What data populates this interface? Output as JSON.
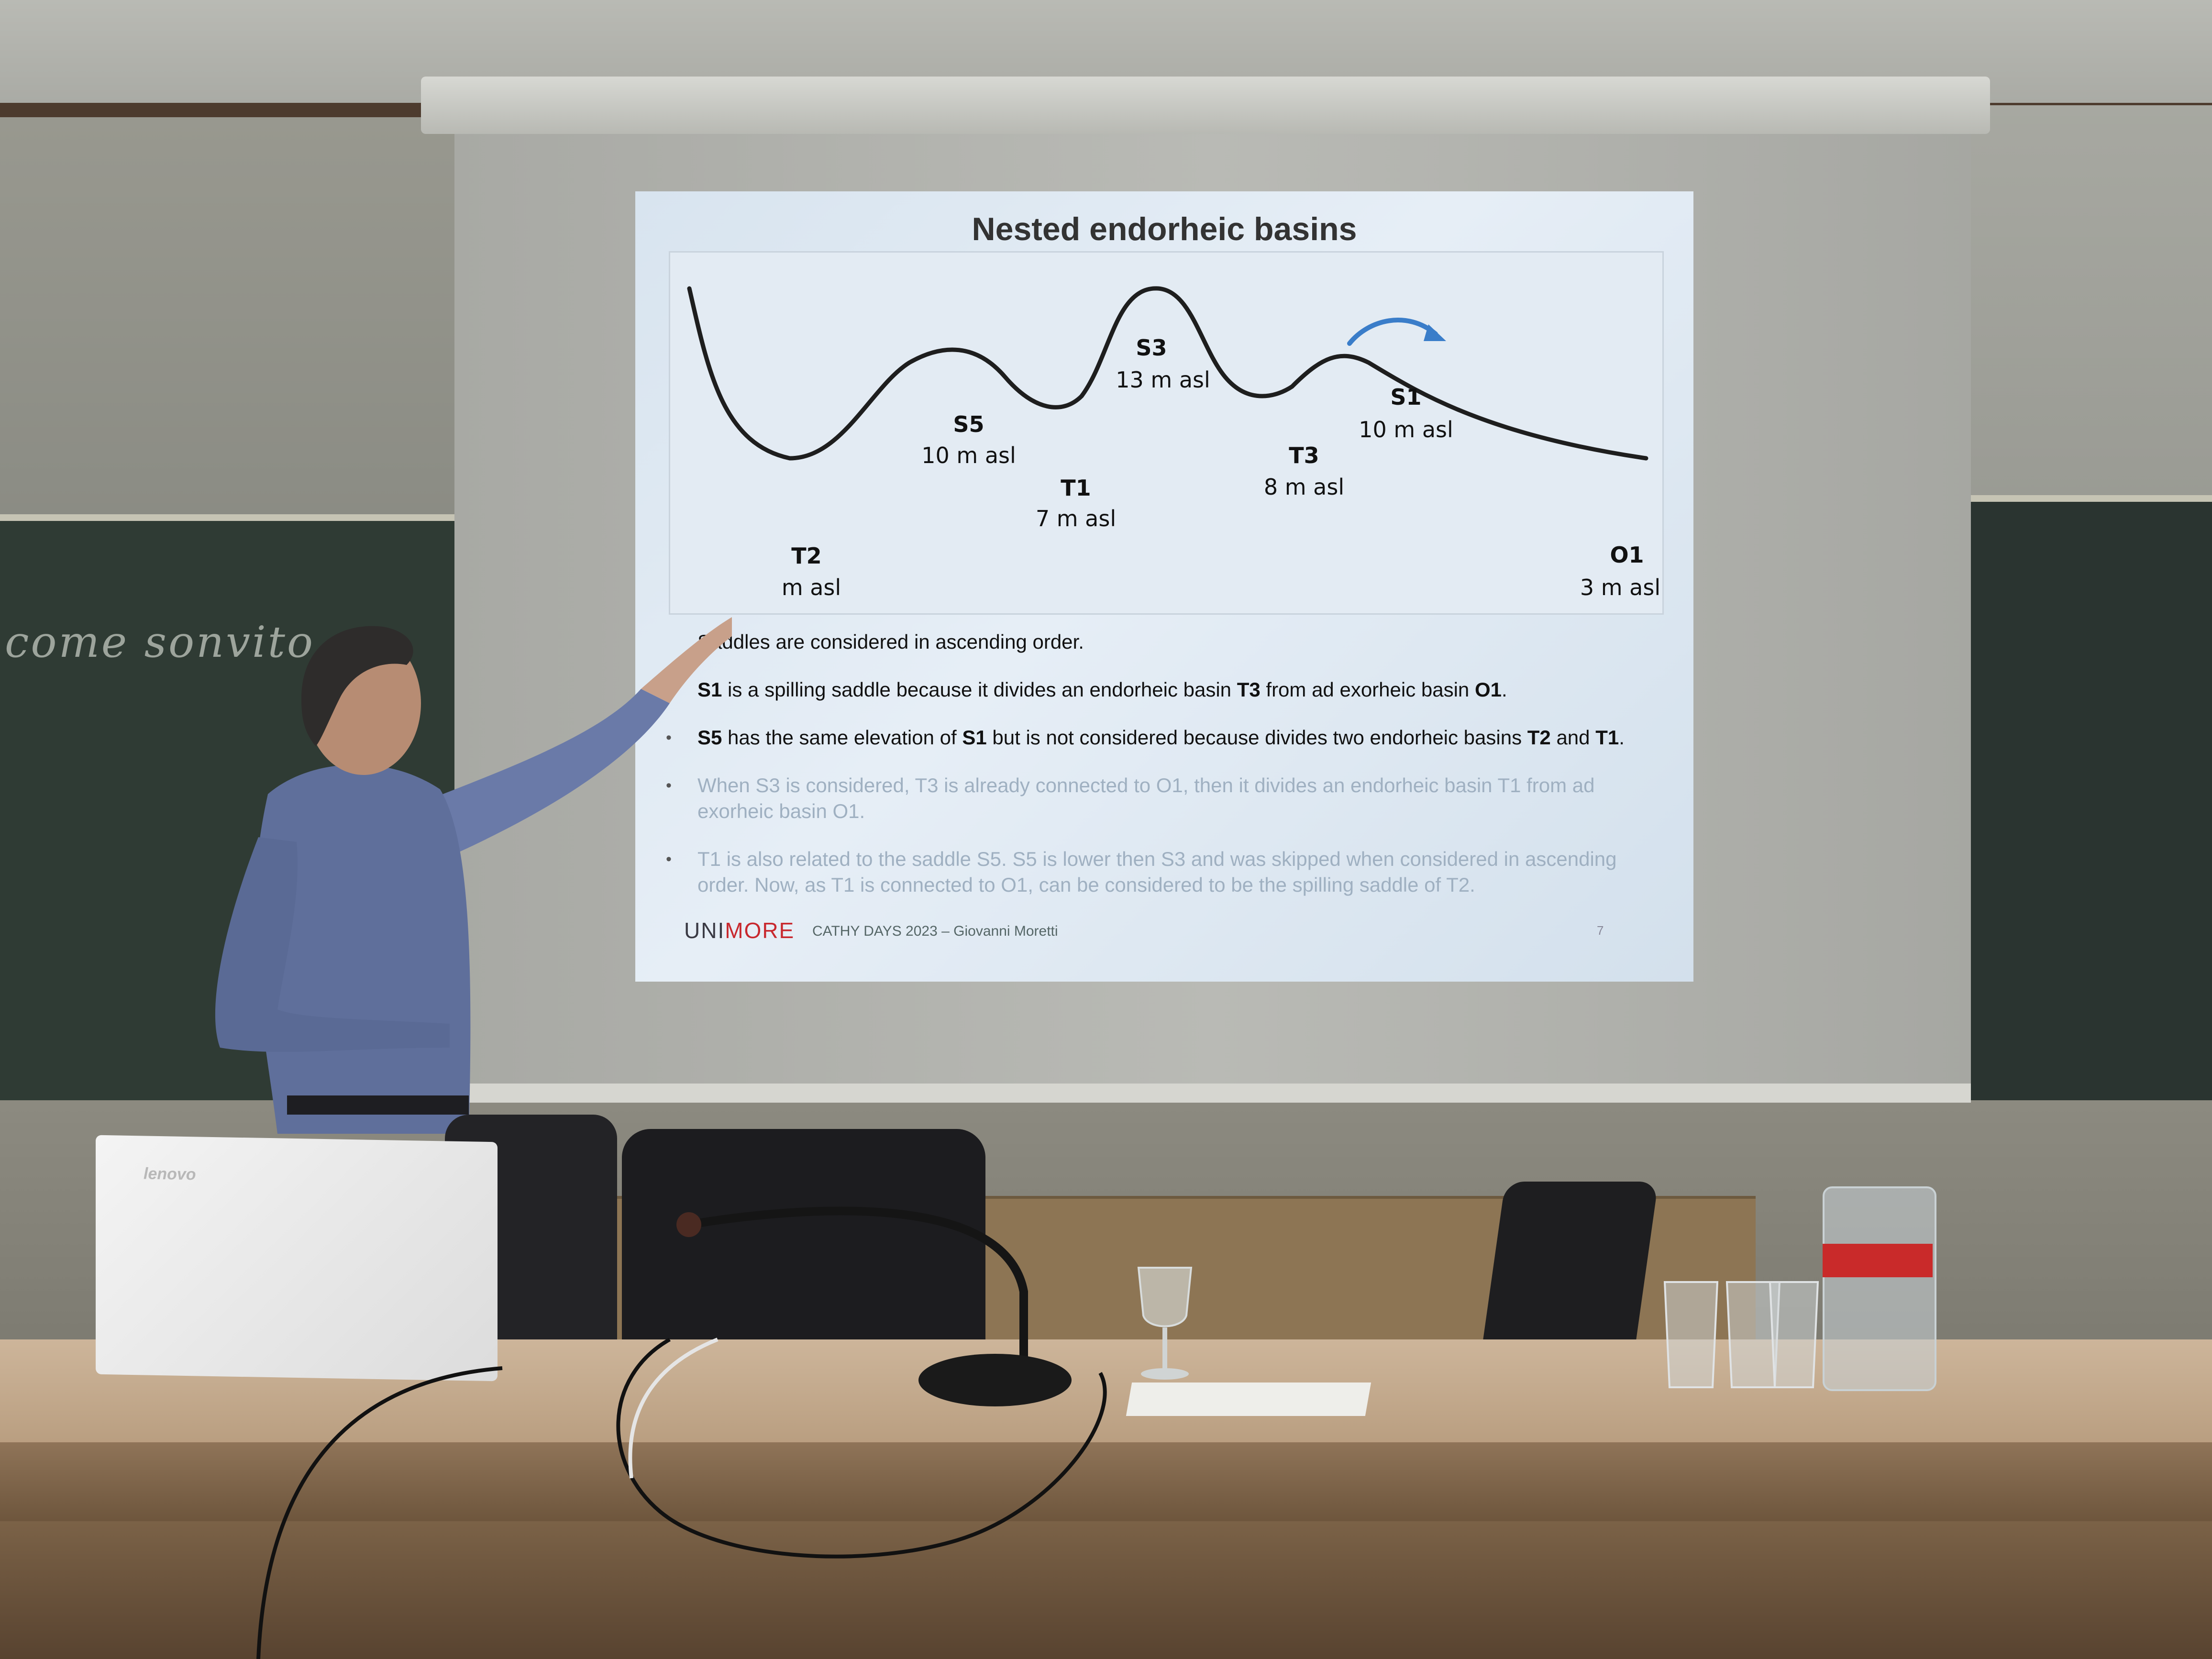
{
  "slide": {
    "title": "Nested endorheic basins",
    "diagram": {
      "points": [
        {
          "id": "S3",
          "elevation": "13 m asl"
        },
        {
          "id": "S5",
          "elevation": "10 m asl"
        },
        {
          "id": "S1",
          "elevation": "10 m asl"
        },
        {
          "id": "T1",
          "elevation": "7 m asl"
        },
        {
          "id": "T3",
          "elevation": "8 m asl"
        },
        {
          "id": "T2",
          "elevation": "m asl"
        },
        {
          "id": "O1",
          "elevation": "3 m asl"
        }
      ],
      "arrow_color": "#3a7dc9"
    },
    "bullets": [
      {
        "parts": [
          "",
          "",
          "Sa",
          "",
          "",
          "",
          "",
          "ddles are considered in ascending order."
        ],
        "faded": false
      },
      {
        "parts": [
          "",
          "S1",
          " is a spilling saddle because it divides an endorheic basin ",
          "T3",
          " from ad exorheic basin ",
          "O1",
          ".",
          ""
        ],
        "faded": false
      },
      {
        "parts": [
          "",
          "S5",
          " has the same elevation of ",
          "S1",
          " but is not considered because divides two endorheic basins ",
          "T2",
          " and ",
          "T1"
        ],
        "faded": false,
        "suffix": "."
      },
      {
        "text": "When S3 is considered, T3 is already connected to O1, then it divides an endorheic basin T1 from ad exorheic basin O1.",
        "faded": true
      },
      {
        "text": "T1 is also related to the saddle S5. S5 is lower then S3 and was skipped when considered in ascending order. Now, as T1 is connected to O1, can be considered to be the spilling saddle of T2.",
        "faded": true
      }
    ],
    "footer": {
      "logo_uni": "UNI",
      "logo_more": "MORE",
      "text": "CATHY DAYS 2023 – Giovanni Moretti",
      "page": "7"
    }
  },
  "chalkboard_text": "come sonvito",
  "laptop_brand": "lenovo"
}
